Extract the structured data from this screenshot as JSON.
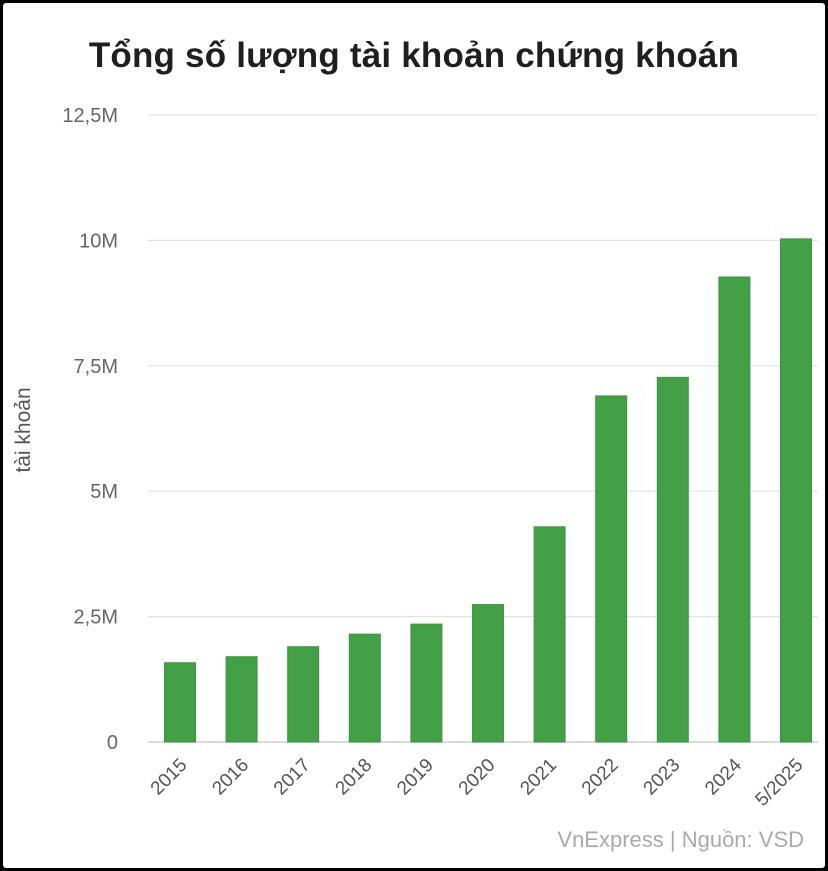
{
  "chart_data": {
    "type": "bar",
    "title": "Tổng số lượng tài khoản chứng khoán",
    "ylabel": "tài khoản",
    "xlabel": "",
    "categories": [
      "2015",
      "2016",
      "2017",
      "2018",
      "2019",
      "2020",
      "2021",
      "2022",
      "2023",
      "2024",
      "5/2025"
    ],
    "values": [
      1580000,
      1700000,
      1900000,
      2150000,
      2350000,
      2740000,
      4290000,
      6900000,
      7270000,
      9270000,
      10030000
    ],
    "ylim": [
      0,
      12500000
    ],
    "yticks": [
      0,
      2500000,
      5000000,
      7500000,
      10000000,
      12500000
    ],
    "ytick_labels": [
      "0",
      "2,5M",
      "5M",
      "7,5M",
      "10M",
      "12,5M"
    ],
    "grid": true,
    "bar_color": "#43a047"
  },
  "source": "VnExpress | Nguồn: VSD"
}
